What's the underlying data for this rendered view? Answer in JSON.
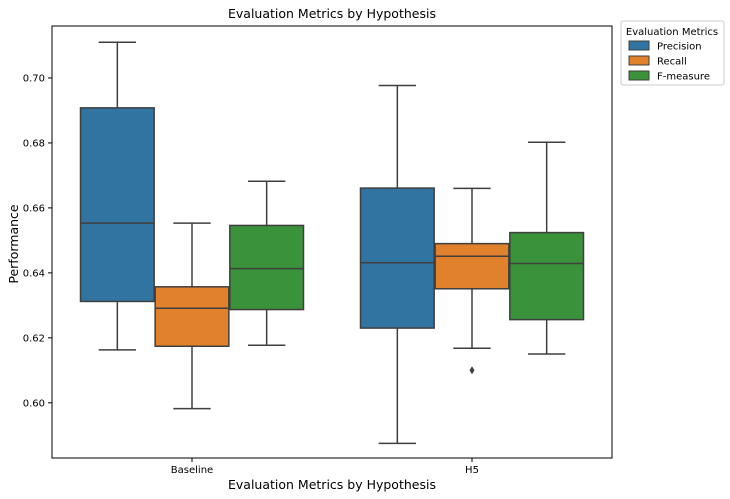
{
  "chart_data": {
    "type": "boxplot",
    "title": "Evaluation Metrics by Hypothesis",
    "xlabel": "Evaluation Metrics by Hypothesis",
    "ylabel": "Performance",
    "ylim": [
      0.583,
      0.716
    ],
    "yticks": [
      0.6,
      0.62,
      0.64,
      0.66,
      0.68,
      0.7
    ],
    "ytick_labels": [
      "0.60",
      "0.62",
      "0.64",
      "0.66",
      "0.68",
      "0.70"
    ],
    "categories": [
      "Baseline",
      "H5"
    ],
    "legend": {
      "title": "Evaluation Metrics",
      "placement": "outside-top-right"
    },
    "grid": false,
    "series": [
      {
        "name": "Precision",
        "color": "#3274a1",
        "boxes": [
          {
            "whisker_low": 0.6163,
            "q1": 0.6312,
            "median": 0.6553,
            "q3": 0.6908,
            "whisker_high": 0.711,
            "outliers": []
          },
          {
            "whisker_low": 0.5875,
            "q1": 0.623,
            "median": 0.6431,
            "q3": 0.6661,
            "whisker_high": 0.6977,
            "outliers": []
          }
        ]
      },
      {
        "name": "Recall",
        "color": "#e1812c",
        "boxes": [
          {
            "whisker_low": 0.5982,
            "q1": 0.6174,
            "median": 0.6291,
            "q3": 0.6357,
            "whisker_high": 0.6553,
            "outliers": []
          },
          {
            "whisker_low": 0.6168,
            "q1": 0.6351,
            "median": 0.6451,
            "q3": 0.649,
            "whisker_high": 0.666,
            "outliers": [
              0.61
            ]
          }
        ]
      },
      {
        "name": "F-measure",
        "color": "#3a923a",
        "boxes": [
          {
            "whisker_low": 0.6177,
            "q1": 0.6287,
            "median": 0.6413,
            "q3": 0.6546,
            "whisker_high": 0.6682,
            "outliers": []
          },
          {
            "whisker_low": 0.615,
            "q1": 0.6256,
            "median": 0.6429,
            "q3": 0.6524,
            "whisker_high": 0.6802,
            "outliers": []
          }
        ]
      }
    ]
  }
}
